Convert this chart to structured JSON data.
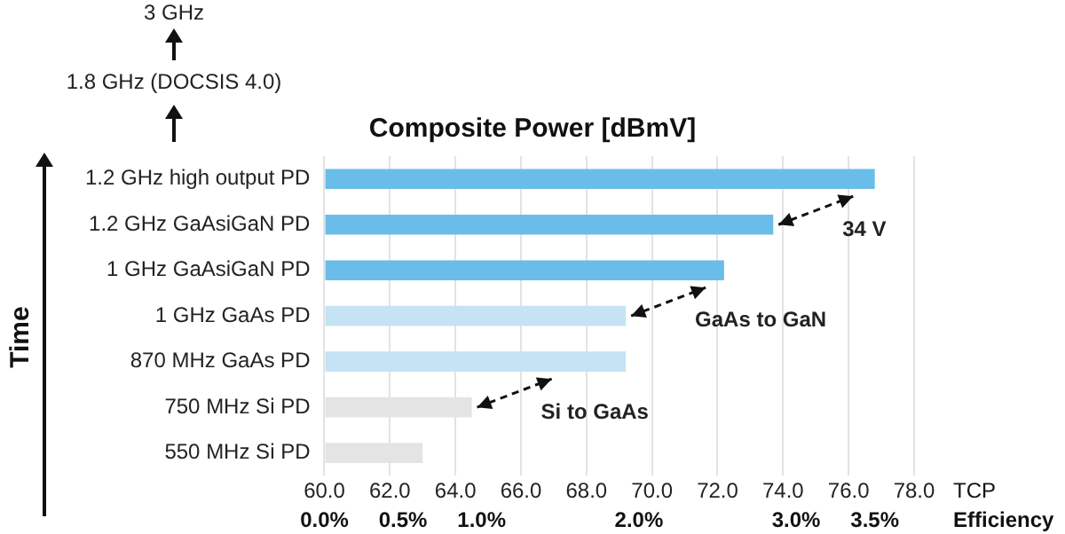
{
  "chart_data": {
    "type": "bar",
    "orientation": "horizontal",
    "title": "Composite Power [dBmV]",
    "xlabel": "TCP",
    "x2label": "Efficiency",
    "ylabel": "Time",
    "categories": [
      "1.2 GHz high output PD",
      "1.2 GHz GaAsiGaN PD",
      "1 GHz GaAsiGaN PD",
      "1 GHz GaAs PD",
      "870 MHz GaAs PD",
      "750 MHz Si PD",
      "550 MHz Si PD"
    ],
    "values": [
      76.8,
      73.7,
      72.2,
      69.2,
      69.2,
      64.5,
      63.0
    ],
    "colors": [
      "#6bbde9",
      "#6bbde9",
      "#6bbde9",
      "#c5e3f5",
      "#c5e3f5",
      "#e4e4e4",
      "#e4e4e4"
    ],
    "xlim": [
      60,
      78
    ],
    "xticks": [
      {
        "value": 60,
        "label": "60.0"
      },
      {
        "value": 62,
        "label": "62.0"
      },
      {
        "value": 64,
        "label": "64.0"
      },
      {
        "value": 66,
        "label": "66.0"
      },
      {
        "value": 68,
        "label": "68.0"
      },
      {
        "value": 70,
        "label": "70.0"
      },
      {
        "value": 72,
        "label": "72.0"
      },
      {
        "value": 74,
        "label": "74.0"
      },
      {
        "value": 76,
        "label": "76.0"
      },
      {
        "value": 78,
        "label": "78.0"
      }
    ],
    "x2lim": [
      0,
      3.75
    ],
    "x2ticks": [
      {
        "value": 0,
        "label": "0.0%"
      },
      {
        "value": 0.5,
        "label": "0.5%"
      },
      {
        "value": 1,
        "label": "1.0%"
      },
      {
        "value": 2,
        "label": "2.0%"
      },
      {
        "value": 3,
        "label": "3.0%"
      },
      {
        "value": 3.5,
        "label": "3.5%"
      }
    ],
    "grid": "x",
    "annotations": [
      "3 GHz",
      "1.8 GHz (DOCSIS 4.0)",
      {
        "text": "34 V",
        "x": 73.7,
        "y": "1.2 GHz GaAsiGaN PD"
      },
      {
        "text": "GaAs to GaN",
        "x": 69.2,
        "y": "1 GHz GaAs PD"
      },
      {
        "text": "Si to GaAs",
        "x": 64.5,
        "y": "750 MHz Si PD"
      }
    ]
  }
}
